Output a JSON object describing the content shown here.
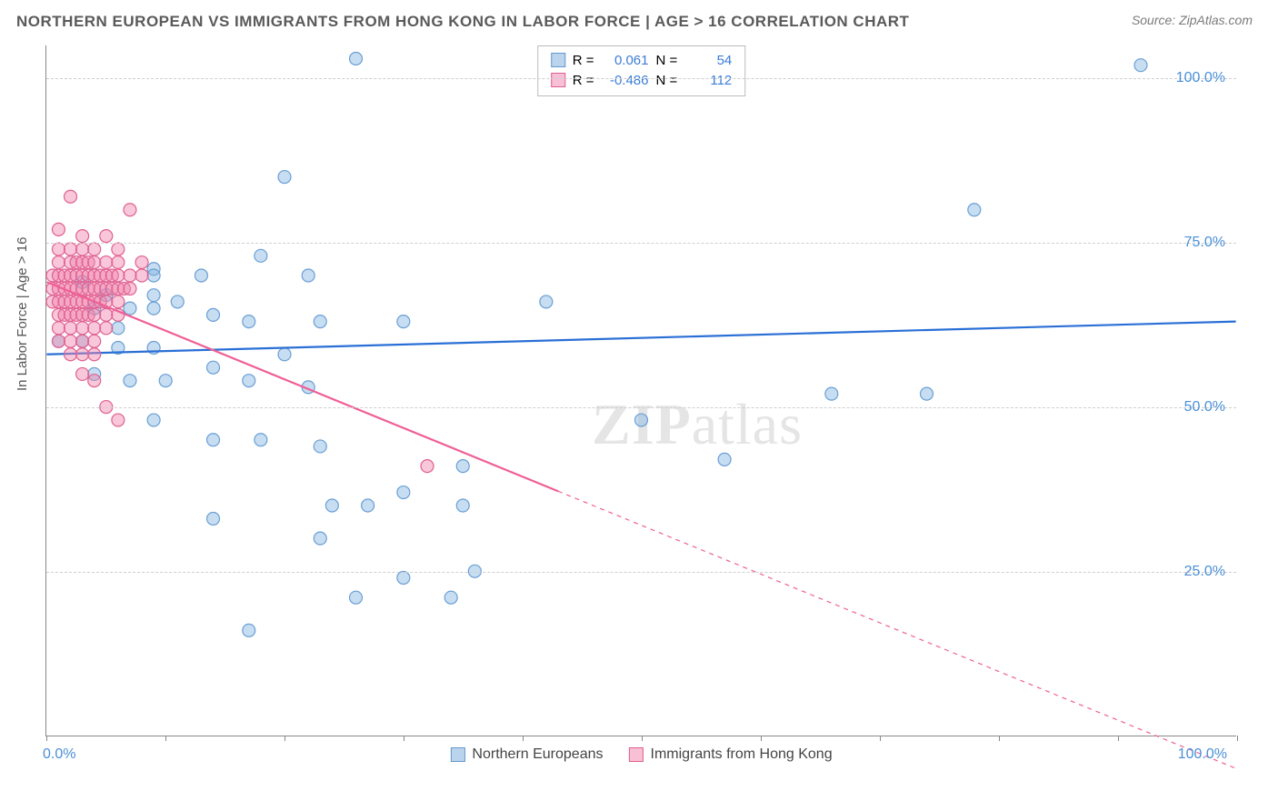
{
  "title": "NORTHERN EUROPEAN VS IMMIGRANTS FROM HONG KONG IN LABOR FORCE | AGE > 16 CORRELATION CHART",
  "source": "Source: ZipAtlas.com",
  "y_axis_title": "In Labor Force | Age > 16",
  "watermark": {
    "bold": "ZIP",
    "rest": "atlas"
  },
  "chart": {
    "type": "scatter",
    "background_color": "#ffffff",
    "grid_color": "#cfcfcf",
    "axis_color": "#888888",
    "tick_label_color": "#4a8fd6",
    "xlim": [
      0,
      100
    ],
    "ylim": [
      0,
      105
    ],
    "y_gridlines": [
      25,
      50,
      75,
      100
    ],
    "y_tick_labels": [
      "25.0%",
      "50.0%",
      "75.0%",
      "100.0%"
    ],
    "x_ticks": [
      0,
      10,
      20,
      30,
      40,
      50,
      60,
      70,
      80,
      90,
      100
    ],
    "x_label_min": "0.0%",
    "x_label_max": "100.0%",
    "marker_radius": 7,
    "marker_stroke_width": 1.2,
    "trend_line_width": 2.2,
    "series": [
      {
        "name": "Northern Europeans",
        "color_fill": "rgba(130,180,225,0.45)",
        "color_stroke": "#6a9fd4",
        "trend_color": "#2a6fd6",
        "trend": {
          "x1": 0,
          "y1": 58,
          "x2": 100,
          "y2": 63,
          "dashed_from": null
        },
        "R": "0.061",
        "N": "54",
        "points": [
          [
            26,
            103
          ],
          [
            92,
            102
          ],
          [
            20,
            85
          ],
          [
            78,
            80
          ],
          [
            18,
            73
          ],
          [
            9,
            71
          ],
          [
            9,
            70
          ],
          [
            13,
            70
          ],
          [
            22,
            70
          ],
          [
            3,
            69
          ],
          [
            5,
            67
          ],
          [
            9,
            67
          ],
          [
            11,
            66
          ],
          [
            9,
            65
          ],
          [
            7,
            65
          ],
          [
            4,
            65
          ],
          [
            42,
            66
          ],
          [
            14,
            64
          ],
          [
            17,
            63
          ],
          [
            23,
            63
          ],
          [
            6,
            62
          ],
          [
            30,
            63
          ],
          [
            1,
            60
          ],
          [
            3,
            60
          ],
          [
            6,
            59
          ],
          [
            9,
            59
          ],
          [
            14,
            56
          ],
          [
            20,
            58
          ],
          [
            4,
            55
          ],
          [
            7,
            54
          ],
          [
            10,
            54
          ],
          [
            17,
            54
          ],
          [
            22,
            53
          ],
          [
            74,
            52
          ],
          [
            66,
            52
          ],
          [
            9,
            48
          ],
          [
            57,
            42
          ],
          [
            50,
            48
          ],
          [
            14,
            45
          ],
          [
            18,
            45
          ],
          [
            23,
            44
          ],
          [
            35,
            41
          ],
          [
            30,
            37
          ],
          [
            24,
            35
          ],
          [
            27,
            35
          ],
          [
            35,
            35
          ],
          [
            14,
            33
          ],
          [
            23,
            30
          ],
          [
            30,
            24
          ],
          [
            36,
            25
          ],
          [
            26,
            21
          ],
          [
            34,
            21
          ],
          [
            17,
            16
          ]
        ]
      },
      {
        "name": "Immigrants from Hong Kong",
        "color_fill": "rgba(240,130,170,0.45)",
        "color_stroke": "#e06090",
        "trend_color": "#ef5f96",
        "trend": {
          "x1": 0,
          "y1": 69,
          "x2": 100,
          "y2": -5,
          "dashed_from": 43
        },
        "R": "-0.486",
        "N": "112",
        "points": [
          [
            2,
            82
          ],
          [
            7,
            80
          ],
          [
            1,
            77
          ],
          [
            3,
            76
          ],
          [
            5,
            76
          ],
          [
            1,
            74
          ],
          [
            2,
            74
          ],
          [
            3,
            74
          ],
          [
            4,
            74
          ],
          [
            6,
            74
          ],
          [
            1,
            72
          ],
          [
            2,
            72
          ],
          [
            2.5,
            72
          ],
          [
            3,
            72
          ],
          [
            3.5,
            72
          ],
          [
            4,
            72
          ],
          [
            5,
            72
          ],
          [
            6,
            72
          ],
          [
            8,
            72
          ],
          [
            0.5,
            70
          ],
          [
            1,
            70
          ],
          [
            1.5,
            70
          ],
          [
            2,
            70
          ],
          [
            2.5,
            70
          ],
          [
            3,
            70
          ],
          [
            3.5,
            70
          ],
          [
            4,
            70
          ],
          [
            4.5,
            70
          ],
          [
            5,
            70
          ],
          [
            5.5,
            70
          ],
          [
            6,
            70
          ],
          [
            7,
            70
          ],
          [
            8,
            70
          ],
          [
            0.5,
            68
          ],
          [
            1,
            68
          ],
          [
            1.5,
            68
          ],
          [
            2,
            68
          ],
          [
            2.5,
            68
          ],
          [
            3,
            68
          ],
          [
            3.5,
            68
          ],
          [
            4,
            68
          ],
          [
            4.5,
            68
          ],
          [
            5,
            68
          ],
          [
            5.5,
            68
          ],
          [
            6,
            68
          ],
          [
            6.5,
            68
          ],
          [
            7,
            68
          ],
          [
            0.5,
            66
          ],
          [
            1,
            66
          ],
          [
            1.5,
            66
          ],
          [
            2,
            66
          ],
          [
            2.5,
            66
          ],
          [
            3,
            66
          ],
          [
            3.5,
            66
          ],
          [
            4,
            66
          ],
          [
            4.5,
            66
          ],
          [
            5,
            66
          ],
          [
            6,
            66
          ],
          [
            1,
            64
          ],
          [
            1.5,
            64
          ],
          [
            2,
            64
          ],
          [
            2.5,
            64
          ],
          [
            3,
            64
          ],
          [
            3.5,
            64
          ],
          [
            4,
            64
          ],
          [
            5,
            64
          ],
          [
            6,
            64
          ],
          [
            1,
            62
          ],
          [
            2,
            62
          ],
          [
            3,
            62
          ],
          [
            4,
            62
          ],
          [
            5,
            62
          ],
          [
            1,
            60
          ],
          [
            2,
            60
          ],
          [
            3,
            60
          ],
          [
            4,
            60
          ],
          [
            2,
            58
          ],
          [
            3,
            58
          ],
          [
            4,
            58
          ],
          [
            3,
            55
          ],
          [
            4,
            54
          ],
          [
            5,
            50
          ],
          [
            6,
            48
          ],
          [
            32,
            41
          ]
        ]
      }
    ]
  },
  "legend_top": {
    "rows": [
      {
        "swatch": "blue",
        "r_label": "R =",
        "r_val": "0.061",
        "n_label": "N =",
        "n_val": "54"
      },
      {
        "swatch": "pink",
        "r_label": "R =",
        "r_val": "-0.486",
        "n_label": "N =",
        "n_val": "112"
      }
    ]
  },
  "legend_bottom": {
    "items": [
      {
        "swatch": "blue",
        "label": "Northern Europeans"
      },
      {
        "swatch": "pink",
        "label": "Immigrants from Hong Kong"
      }
    ]
  }
}
